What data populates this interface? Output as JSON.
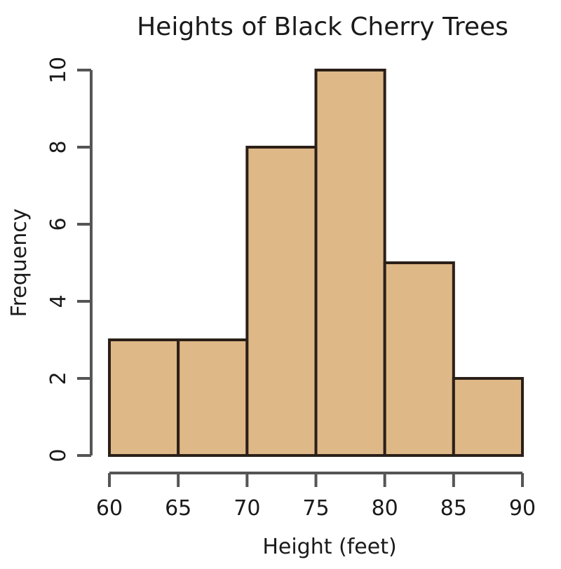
{
  "chart_data": {
    "type": "bar",
    "subtype": "histogram",
    "title": "Heights of Black Cherry Trees",
    "xlabel": "Height (feet)",
    "ylabel": "Frequency",
    "bin_edges": [
      60,
      65,
      70,
      75,
      80,
      85,
      90
    ],
    "categories": [
      "60-65",
      "65-70",
      "70-75",
      "75-80",
      "80-85",
      "85-90"
    ],
    "values": [
      3,
      3,
      8,
      10,
      5,
      2
    ],
    "xlim": [
      60,
      90
    ],
    "ylim": [
      0,
      10
    ],
    "x_ticks": [
      60,
      65,
      70,
      75,
      80,
      85,
      90
    ],
    "y_ticks": [
      0,
      2,
      4,
      6,
      8,
      10
    ],
    "grid": false,
    "legend": null,
    "colors": {
      "bar_fill": "#DEB887",
      "bar_edge": "#2b2018",
      "axis": "#555555",
      "text": "#1a1a1a"
    }
  }
}
